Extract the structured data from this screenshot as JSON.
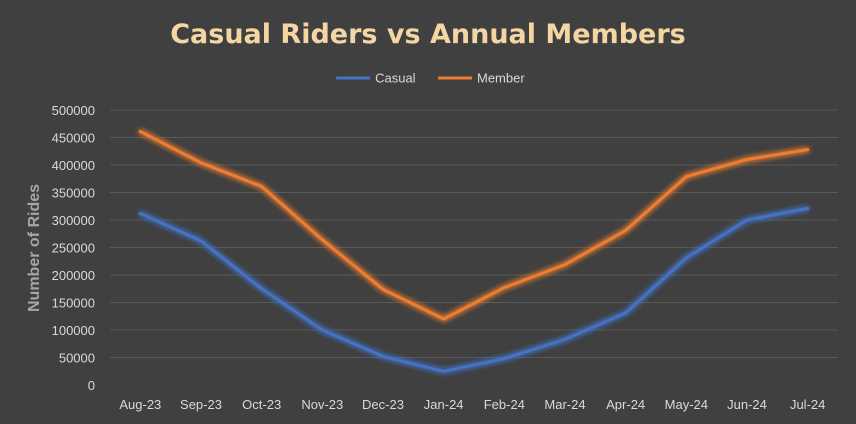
{
  "chart_data": {
    "type": "line",
    "title": "Casual Riders vs Annual Members",
    "xlabel": "",
    "ylabel": "Number of Rides",
    "categories": [
      "Aug-23",
      "Sep-23",
      "Oct-23",
      "Nov-23",
      "Dec-23",
      "Jan-24",
      "Feb-24",
      "Mar-24",
      "Apr-24",
      "May-24",
      "Jun-24",
      "Jul-24"
    ],
    "series": [
      {
        "name": "Casual",
        "color": "#4472c4",
        "values": [
          312000,
          262000,
          175000,
          100000,
          52000,
          25000,
          48000,
          83000,
          131000,
          231000,
          300000,
          321000
        ]
      },
      {
        "name": "Member",
        "color": "#ed7d31",
        "values": [
          461000,
          404000,
          361000,
          264000,
          174000,
          120000,
          177000,
          219000,
          281000,
          379000,
          410000,
          428000
        ]
      }
    ],
    "ylim": [
      0,
      500000
    ],
    "yticks": [
      0,
      50000,
      100000,
      150000,
      200000,
      250000,
      300000,
      350000,
      400000,
      450000,
      500000
    ],
    "grid": true,
    "legend": "top",
    "title_color": "#f4d6a3"
  }
}
